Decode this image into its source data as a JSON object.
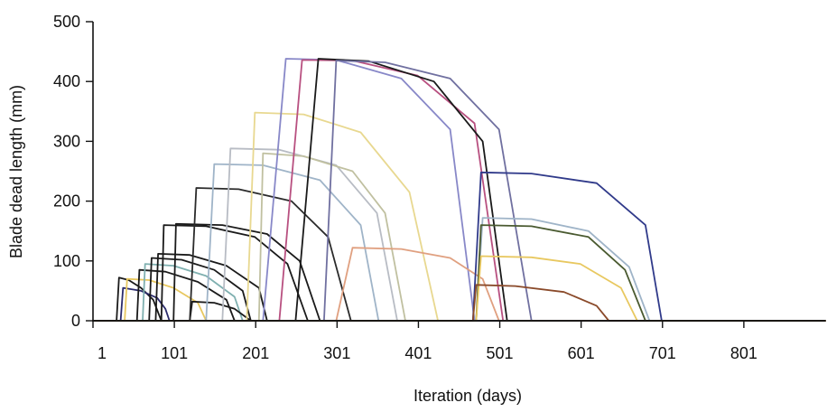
{
  "chart_data": {
    "type": "line",
    "title": "",
    "xlabel": "Iteration (days)",
    "ylabel": "Blade dead length (mm)",
    "xlim": [
      1,
      901
    ],
    "ylim": [
      0,
      500
    ],
    "xticks": [
      1,
      101,
      201,
      301,
      401,
      501,
      601,
      701,
      801
    ],
    "yticks": [
      0,
      100,
      200,
      300,
      400,
      500
    ],
    "grid": false,
    "legend": "none",
    "series": [
      {
        "color": "#1a1a1a",
        "points": [
          [
            1,
            0
          ],
          [
            30,
            0
          ],
          [
            33,
            72
          ],
          [
            45,
            68
          ],
          [
            60,
            55
          ],
          [
            75,
            35
          ],
          [
            85,
            0
          ],
          [
            901,
            0
          ]
        ]
      },
      {
        "color": "#2b2b6b",
        "points": [
          [
            1,
            0
          ],
          [
            35,
            0
          ],
          [
            38,
            55
          ],
          [
            60,
            50
          ],
          [
            80,
            38
          ],
          [
            90,
            20
          ],
          [
            95,
            0
          ],
          [
            901,
            0
          ]
        ]
      },
      {
        "color": "#e8c860",
        "points": [
          [
            1,
            0
          ],
          [
            40,
            0
          ],
          [
            43,
            70
          ],
          [
            70,
            68
          ],
          [
            100,
            55
          ],
          [
            130,
            30
          ],
          [
            140,
            0
          ],
          [
            901,
            0
          ]
        ]
      },
      {
        "color": "#1a1a1a",
        "points": [
          [
            1,
            0
          ],
          [
            55,
            0
          ],
          [
            58,
            85
          ],
          [
            90,
            82
          ],
          [
            130,
            65
          ],
          [
            165,
            35
          ],
          [
            175,
            0
          ],
          [
            901,
            0
          ]
        ]
      },
      {
        "color": "#7fb0b0",
        "points": [
          [
            1,
            0
          ],
          [
            62,
            0
          ],
          [
            65,
            95
          ],
          [
            100,
            92
          ],
          [
            140,
            75
          ],
          [
            175,
            40
          ],
          [
            185,
            0
          ],
          [
            901,
            0
          ]
        ]
      },
      {
        "color": "#1a1a1a",
        "points": [
          [
            1,
            0
          ],
          [
            70,
            0
          ],
          [
            73,
            105
          ],
          [
            110,
            102
          ],
          [
            150,
            85
          ],
          [
            185,
            50
          ],
          [
            195,
            0
          ],
          [
            901,
            0
          ]
        ]
      },
      {
        "color": "#1a1a1a",
        "points": [
          [
            1,
            0
          ],
          [
            78,
            0
          ],
          [
            81,
            112
          ],
          [
            120,
            110
          ],
          [
            165,
            92
          ],
          [
            205,
            55
          ],
          [
            215,
            0
          ],
          [
            901,
            0
          ]
        ]
      },
      {
        "color": "#1a1a1a",
        "points": [
          [
            1,
            0
          ],
          [
            85,
            0
          ],
          [
            88,
            160
          ],
          [
            140,
            158
          ],
          [
            200,
            140
          ],
          [
            240,
            95
          ],
          [
            265,
            0
          ],
          [
            901,
            0
          ]
        ]
      },
      {
        "color": "#1a1a1a",
        "points": [
          [
            1,
            0
          ],
          [
            100,
            0
          ],
          [
            103,
            162
          ],
          [
            160,
            160
          ],
          [
            215,
            145
          ],
          [
            255,
            100
          ],
          [
            280,
            0
          ],
          [
            901,
            0
          ]
        ]
      },
      {
        "color": "#1a1a1a",
        "points": [
          [
            1,
            0
          ],
          [
            120,
            0
          ],
          [
            123,
            32
          ],
          [
            150,
            30
          ],
          [
            175,
            20
          ],
          [
            195,
            0
          ],
          [
            901,
            0
          ]
        ]
      },
      {
        "color": "#2b2b2b",
        "points": [
          [
            1,
            0
          ],
          [
            120,
            0
          ],
          [
            128,
            222
          ],
          [
            180,
            220
          ],
          [
            245,
            200
          ],
          [
            290,
            140
          ],
          [
            318,
            0
          ],
          [
            901,
            0
          ]
        ]
      },
      {
        "color": "#9fb4c8",
        "points": [
          [
            1,
            0
          ],
          [
            140,
            0
          ],
          [
            150,
            262
          ],
          [
            210,
            260
          ],
          [
            280,
            235
          ],
          [
            330,
            160
          ],
          [
            352,
            0
          ],
          [
            901,
            0
          ]
        ]
      },
      {
        "color": "#b8bcc4",
        "points": [
          [
            1,
            0
          ],
          [
            160,
            0
          ],
          [
            170,
            288
          ],
          [
            230,
            286
          ],
          [
            300,
            260
          ],
          [
            350,
            180
          ],
          [
            375,
            0
          ],
          [
            901,
            0
          ]
        ]
      },
      {
        "color": "#e8d890",
        "points": [
          [
            1,
            0
          ],
          [
            190,
            0
          ],
          [
            200,
            348
          ],
          [
            260,
            345
          ],
          [
            330,
            315
          ],
          [
            390,
            215
          ],
          [
            425,
            0
          ],
          [
            901,
            0
          ]
        ]
      },
      {
        "color": "#c0c0a0",
        "points": [
          [
            1,
            0
          ],
          [
            205,
            0
          ],
          [
            210,
            280
          ],
          [
            260,
            275
          ],
          [
            320,
            250
          ],
          [
            360,
            180
          ],
          [
            385,
            0
          ],
          [
            901,
            0
          ]
        ]
      },
      {
        "color": "#8888c8",
        "points": [
          [
            1,
            0
          ],
          [
            210,
            0
          ],
          [
            238,
            438
          ],
          [
            300,
            436
          ],
          [
            380,
            405
          ],
          [
            440,
            320
          ],
          [
            470,
            0
          ],
          [
            901,
            0
          ]
        ]
      },
      {
        "color": "#b85080",
        "points": [
          [
            1,
            0
          ],
          [
            230,
            0
          ],
          [
            258,
            436
          ],
          [
            320,
            435
          ],
          [
            400,
            410
          ],
          [
            470,
            330
          ],
          [
            505,
            0
          ],
          [
            901,
            0
          ]
        ]
      },
      {
        "color": "#1a1a1a",
        "points": [
          [
            1,
            0
          ],
          [
            250,
            0
          ],
          [
            278,
            438
          ],
          [
            340,
            434
          ],
          [
            420,
            400
          ],
          [
            480,
            300
          ],
          [
            510,
            0
          ],
          [
            901,
            0
          ]
        ]
      },
      {
        "color": "#7070a0",
        "points": [
          [
            1,
            0
          ],
          [
            285,
            0
          ],
          [
            300,
            435
          ],
          [
            360,
            432
          ],
          [
            440,
            405
          ],
          [
            500,
            320
          ],
          [
            540,
            0
          ],
          [
            901,
            0
          ]
        ]
      },
      {
        "color": "#e0a080",
        "points": [
          [
            1,
            0
          ],
          [
            300,
            0
          ],
          [
            320,
            122
          ],
          [
            380,
            120
          ],
          [
            440,
            105
          ],
          [
            480,
            70
          ],
          [
            500,
            0
          ],
          [
            901,
            0
          ]
        ]
      },
      {
        "color": "#303a8a",
        "points": [
          [
            1,
            0
          ],
          [
            468,
            0
          ],
          [
            478,
            248
          ],
          [
            540,
            246
          ],
          [
            620,
            230
          ],
          [
            680,
            160
          ],
          [
            700,
            0
          ],
          [
            901,
            0
          ]
        ]
      },
      {
        "color": "#9fb4c8",
        "points": [
          [
            1,
            0
          ],
          [
            472,
            0
          ],
          [
            480,
            172
          ],
          [
            540,
            170
          ],
          [
            610,
            150
          ],
          [
            660,
            90
          ],
          [
            685,
            0
          ],
          [
            901,
            0
          ]
        ]
      },
      {
        "color": "#4a5a30",
        "points": [
          [
            1,
            0
          ],
          [
            472,
            0
          ],
          [
            478,
            160
          ],
          [
            540,
            158
          ],
          [
            610,
            140
          ],
          [
            655,
            85
          ],
          [
            680,
            0
          ],
          [
            901,
            0
          ]
        ]
      },
      {
        "color": "#e8c860",
        "points": [
          [
            1,
            0
          ],
          [
            472,
            0
          ],
          [
            478,
            108
          ],
          [
            540,
            106
          ],
          [
            600,
            95
          ],
          [
            650,
            55
          ],
          [
            670,
            0
          ],
          [
            901,
            0
          ]
        ]
      },
      {
        "color": "#8a4a2a",
        "points": [
          [
            1,
            0
          ],
          [
            468,
            0
          ],
          [
            472,
            60
          ],
          [
            520,
            58
          ],
          [
            580,
            48
          ],
          [
            620,
            25
          ],
          [
            635,
            0
          ],
          [
            901,
            0
          ]
        ]
      },
      {
        "color": "#1a1a1a",
        "points": [
          [
            1,
            0
          ],
          [
            901,
            0
          ]
        ]
      }
    ]
  }
}
